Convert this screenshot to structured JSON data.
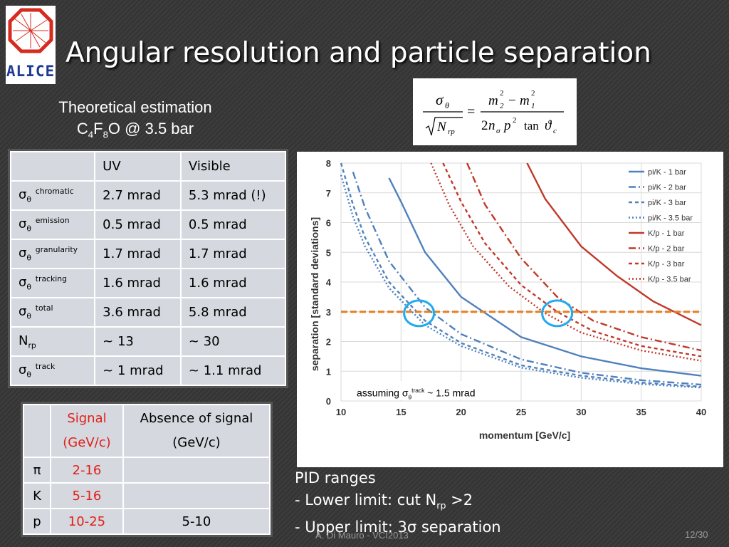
{
  "logo": {
    "text": "ALICE"
  },
  "title": "Angular resolution and particle separation",
  "subtitle": {
    "line1": "Theoretical estimation",
    "line2_prefix": "C",
    "line2_sub1": "4",
    "line2_mid": "F",
    "line2_sub2": "8",
    "line2_suffix": "O @ 3.5 bar"
  },
  "table1": {
    "headers": [
      "",
      "UV",
      "Visible"
    ],
    "rows": [
      {
        "sup": "chromatic",
        "uv": "2.7 mrad",
        "vis": "5.3 mrad (!)"
      },
      {
        "sup": "emission",
        "uv": "0.5 mrad",
        "vis": "0.5 mrad"
      },
      {
        "sup": "granularity",
        "uv": "1.7 mrad",
        "vis": "1.7 mrad"
      },
      {
        "sup": "tracking",
        "uv": "1.6 mrad",
        "vis": "1.6 mrad"
      },
      {
        "sup": "total",
        "uv": "3.6 mrad",
        "vis": "5.8 mrad"
      },
      {
        "label": "N",
        "sub": "rp",
        "uv": "~ 13",
        "vis": "~ 30"
      },
      {
        "sup": "track",
        "uv": "~ 1 mrad",
        "vis": "~ 1.1 mrad"
      }
    ]
  },
  "table2": {
    "h_signal_1": "Signal",
    "h_signal_2": "(GeV/c)",
    "h_absence_1": "Absence of signal",
    "h_absence_2": "(GeV/c)",
    "rows": [
      {
        "particle": "π",
        "signal": "2-16",
        "absence": ""
      },
      {
        "particle": "K",
        "signal": "5-16",
        "absence": ""
      },
      {
        "particle": "p",
        "signal": "10-25",
        "absence": "5-10"
      }
    ]
  },
  "pid": {
    "title": "PID ranges",
    "lower_prefix": "- Lower limit: cut N",
    "lower_sub": "rp",
    "lower_suffix": " >2",
    "upper_prefix": "- Upper limit: 3",
    "upper_symbol": "σ",
    "upper_suffix": " separation"
  },
  "footer": "A. Di Mauro - VCI2013",
  "page": "12/30",
  "colors": {
    "blue": "#4f81bd",
    "red": "#c0392b",
    "orange": "#e67e22",
    "circle": "#22aaee"
  },
  "chart_data": {
    "type": "line",
    "xlabel": "momentum [GeV/c]",
    "ylabel": "separation [standard deviations]",
    "xlim": [
      10,
      40
    ],
    "ylim": [
      0,
      8
    ],
    "xticks": [
      10,
      15,
      20,
      25,
      30,
      35,
      40
    ],
    "yticks": [
      0,
      1,
      2,
      3,
      4,
      5,
      6,
      7,
      8
    ],
    "annotation_prefix": "assuming ",
    "annotation_sup": "track",
    "annotation_suffix": " ~ 1.5 mrad",
    "threshold": 3,
    "highlights": [
      {
        "x": 16.5,
        "y": 2.95
      },
      {
        "x": 28,
        "y": 2.95
      }
    ],
    "series": [
      {
        "name": "pi/K - 1 bar",
        "color": "#4f81bd",
        "dash": "solid",
        "x": [
          14,
          15,
          17,
          20,
          25,
          30,
          35,
          40
        ],
        "y": [
          7.5,
          6.7,
          5.0,
          3.5,
          2.15,
          1.5,
          1.1,
          0.85
        ]
      },
      {
        "name": "pi/K - 2 bar",
        "color": "#4f81bd",
        "dash": "dashdot",
        "x": [
          11,
          12,
          14,
          17,
          20,
          25,
          30,
          35,
          40
        ],
        "y": [
          7.7,
          6.5,
          4.7,
          3.15,
          2.25,
          1.4,
          0.95,
          0.7,
          0.55
        ]
      },
      {
        "name": "pi/K - 3 bar",
        "color": "#4f81bd",
        "dash": "dash",
        "x": [
          10,
          11,
          12,
          14,
          17,
          20,
          25,
          30,
          35,
          40
        ],
        "y": [
          8.0,
          6.6,
          5.5,
          4.0,
          2.7,
          1.95,
          1.2,
          0.85,
          0.62,
          0.48
        ]
      },
      {
        "name": "pi/K - 3.5 bar",
        "color": "#4f81bd",
        "dash": "dot",
        "x": [
          10,
          11,
          12,
          14,
          17,
          20,
          25,
          30,
          35,
          40
        ],
        "y": [
          7.6,
          6.2,
          5.2,
          3.8,
          2.55,
          1.85,
          1.12,
          0.78,
          0.57,
          0.45
        ]
      },
      {
        "name": "K/p - 1 bar",
        "color": "#c0392b",
        "dash": "solid",
        "x": [
          25.5,
          27,
          30,
          33,
          36,
          40
        ],
        "y": [
          8.0,
          6.8,
          5.2,
          4.2,
          3.35,
          2.55
        ]
      },
      {
        "name": "K/p - 2 bar",
        "color": "#c0392b",
        "dash": "dashdot",
        "x": [
          20.5,
          22,
          25,
          28,
          31,
          35,
          40
        ],
        "y": [
          8.0,
          6.6,
          4.8,
          3.5,
          2.7,
          2.15,
          1.7
        ]
      },
      {
        "name": "K/p - 3 bar",
        "color": "#c0392b",
        "dash": "dash",
        "x": [
          18.5,
          20,
          22,
          25,
          28,
          31,
          35,
          40
        ],
        "y": [
          8.0,
          6.7,
          5.3,
          3.9,
          3.0,
          2.35,
          1.85,
          1.5
        ]
      },
      {
        "name": "K/p - 3.5 bar",
        "color": "#c0392b",
        "dash": "dot",
        "x": [
          17.5,
          19,
          21,
          24,
          27,
          30,
          35,
          40
        ],
        "y": [
          8.0,
          6.6,
          5.2,
          3.85,
          2.95,
          2.3,
          1.7,
          1.35
        ]
      }
    ]
  }
}
